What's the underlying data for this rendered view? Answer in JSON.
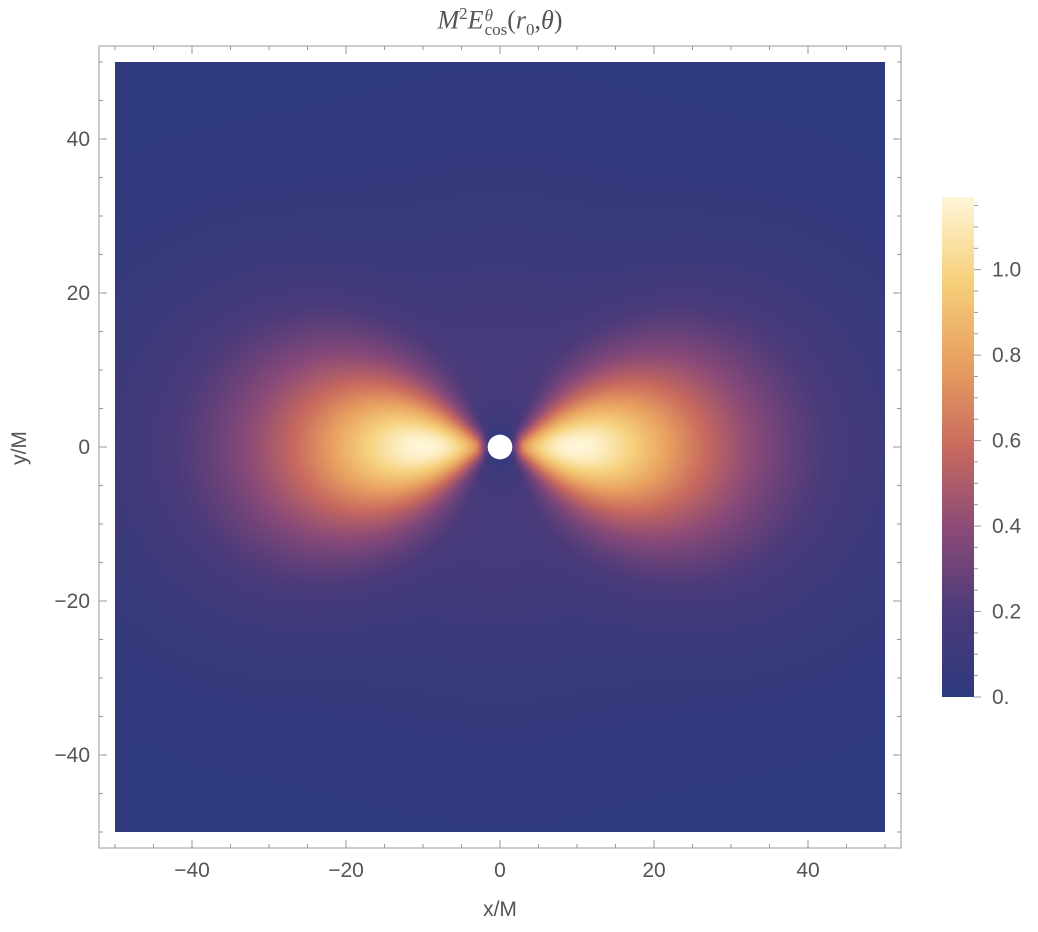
{
  "title": {
    "base": "M",
    "power": "2",
    "symbol": "E",
    "superscript": "θ",
    "subscript": "cos",
    "args_open": "(",
    "arg1": "r",
    "arg1_sub": "0",
    "sep": ",",
    "arg2": "θ",
    "args_close": ")"
  },
  "chart_data": {
    "type": "heatmap",
    "title": "M²E^θ_cos(r₀,θ)",
    "xlabel": "x/M",
    "ylabel": "y/M",
    "xlim": [
      -50,
      50
    ],
    "ylim": [
      -50,
      50
    ],
    "x_ticks": [
      -40,
      -20,
      0,
      20,
      40
    ],
    "x_tick_labels": [
      "−40",
      "−20",
      "0",
      "20",
      "40"
    ],
    "y_ticks": [
      -40,
      -20,
      0,
      20,
      40
    ],
    "y_tick_labels": [
      "−40",
      "−20",
      "0",
      "20",
      "40"
    ],
    "colorbar": {
      "range": [
        0,
        1.17
      ],
      "ticks": [
        0,
        0.2,
        0.4,
        0.6,
        0.8,
        1.0
      ],
      "tick_labels": [
        "0.",
        "0.2",
        "0.4",
        "0.6",
        "0.8",
        "1.0"
      ],
      "colormap": [
        "#2e3a7e",
        "#4a3a7a",
        "#8a4a78",
        "#c86a5e",
        "#e8a060",
        "#f6d07a",
        "#fff6d8"
      ]
    },
    "field": {
      "description_peak_value": 1.17,
      "peaks_at": [
        [
          -10,
          0
        ],
        [
          10,
          0
        ]
      ],
      "zero_along": "y-axis",
      "excluded_disk_center": [
        0,
        0
      ],
      "excluded_disk_radius": 1.6
    }
  }
}
